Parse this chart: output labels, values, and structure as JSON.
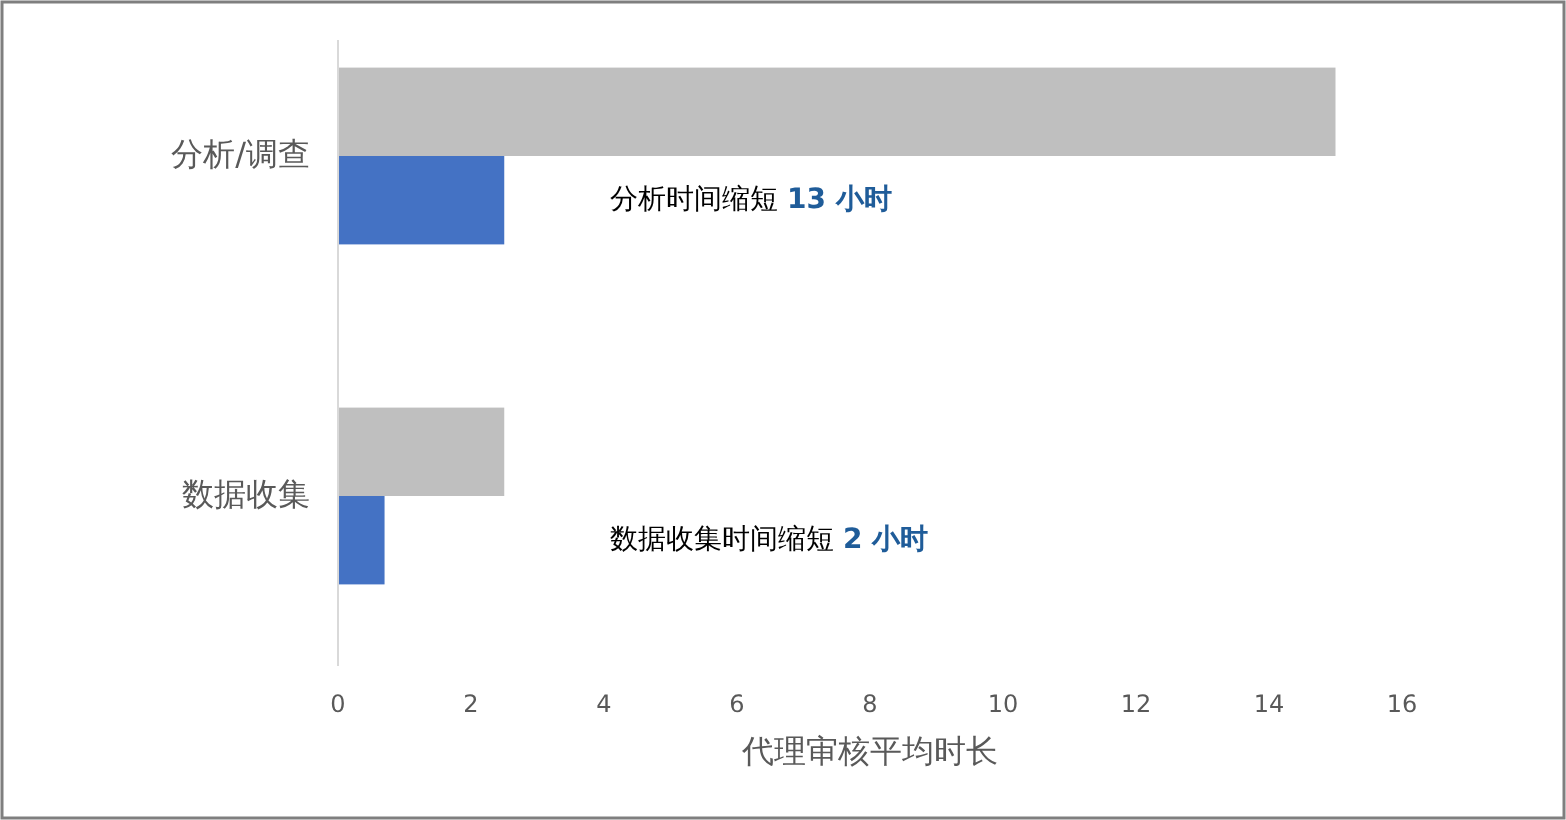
{
  "chart_data": {
    "type": "bar",
    "orientation": "horizontal",
    "categories": [
      "分析/调查",
      "数据收集"
    ],
    "series": [
      {
        "color": "#bfbfbf",
        "values": [
          15,
          2.5
        ]
      },
      {
        "color": "#4472c4",
        "values": [
          2.5,
          0.7
        ]
      }
    ],
    "xlabel": "代理审核平均时长",
    "xlim": [
      0,
      16
    ],
    "xticks": [
      0,
      2,
      4,
      6,
      8,
      10,
      12,
      14,
      16
    ],
    "grid": false,
    "annotations": [
      "分析时间缩短 13 小时",
      "数据收集时间缩短 2 小时"
    ]
  }
}
